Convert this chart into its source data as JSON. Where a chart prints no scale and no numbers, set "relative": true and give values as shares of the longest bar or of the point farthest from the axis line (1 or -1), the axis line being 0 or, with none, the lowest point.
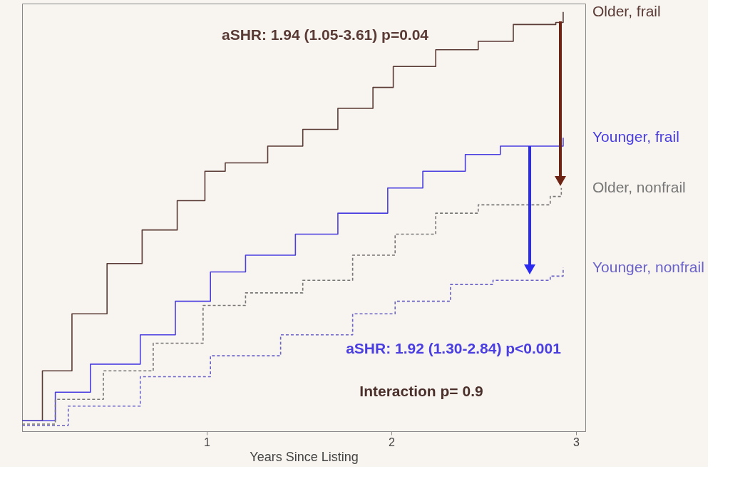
{
  "chart_data": {
    "type": "step",
    "relative": true,
    "xlabel": "Years Since Listing",
    "xlim": [
      0,
      3.05
    ],
    "xticks": [
      1,
      2,
      3
    ],
    "grid": false,
    "series": [
      {
        "name": "Older, frail",
        "color": "#5a3a35",
        "line_style": "solid",
        "x": [
          0,
          0.11,
          0.27,
          0.46,
          0.65,
          0.84,
          0.99,
          1.1,
          1.33,
          1.52,
          1.71,
          1.9,
          2.01,
          2.24,
          2.47,
          2.66,
          2.89,
          2.93
        ],
        "values": [
          0.025,
          0.144,
          0.28,
          0.4,
          0.48,
          0.55,
          0.62,
          0.64,
          0.68,
          0.72,
          0.77,
          0.82,
          0.87,
          0.91,
          0.93,
          0.97,
          0.975,
          1.0
        ]
      },
      {
        "name": "Younger, frail",
        "color": "#4a3ee0",
        "line_style": "solid",
        "x": [
          0,
          0.18,
          0.37,
          0.64,
          0.83,
          1.02,
          1.21,
          1.48,
          1.71,
          1.98,
          2.17,
          2.4,
          2.59,
          2.9,
          2.93
        ],
        "values": [
          0.025,
          0.093,
          0.16,
          0.23,
          0.31,
          0.38,
          0.42,
          0.47,
          0.52,
          0.58,
          0.62,
          0.66,
          0.68,
          0.68,
          0.7
        ]
      },
      {
        "name": "Older, nonfrail",
        "color": "#777777",
        "line_style": "dashed",
        "x": [
          0,
          0.18,
          0.44,
          0.71,
          0.98,
          1.21,
          1.52,
          1.79,
          2.02,
          2.24,
          2.47,
          2.86,
          2.92
        ],
        "values": [
          0.017,
          0.076,
          0.144,
          0.21,
          0.3,
          0.33,
          0.36,
          0.42,
          0.47,
          0.52,
          0.54,
          0.56,
          0.58
        ]
      },
      {
        "name": "Younger, nonfrail",
        "color": "#6a62c8",
        "line_style": "dashed",
        "x": [
          0,
          0.25,
          0.64,
          1.02,
          1.4,
          1.79,
          2.02,
          2.32,
          2.55,
          2.86,
          2.93
        ],
        "values": [
          0.014,
          0.06,
          0.13,
          0.18,
          0.23,
          0.28,
          0.31,
          0.35,
          0.36,
          0.37,
          0.39
        ]
      }
    ],
    "annotations": [
      "aSHR: 1.94 (1.05-3.61) p=0.04",
      "aSHR: 1.92 (1.30-2.84) p<0.001",
      "Interaction p= 0.9"
    ]
  }
}
